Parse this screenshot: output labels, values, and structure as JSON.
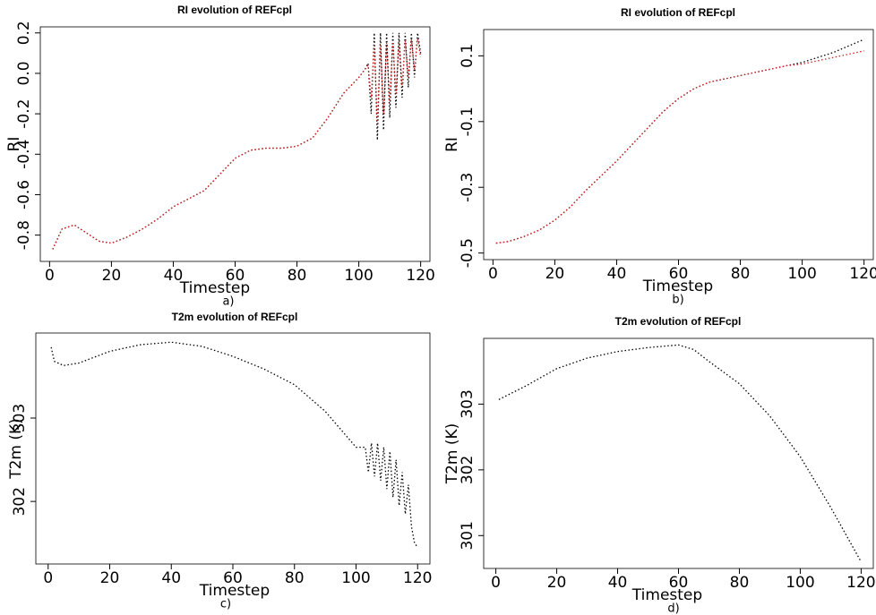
{
  "chart_data": [
    {
      "type": "line",
      "title": "RI evolution of REFcpl",
      "x_label": "Timestep",
      "y_label": "RI",
      "panel_label": "a)",
      "x": [
        1,
        4,
        8,
        12,
        16,
        20,
        25,
        30,
        35,
        40,
        45,
        50,
        55,
        60,
        65,
        70,
        75,
        80,
        85,
        90,
        95,
        100,
        102,
        103,
        104,
        105,
        106,
        107,
        108,
        109,
        110,
        111,
        112,
        113,
        114,
        115,
        116,
        117,
        118,
        119,
        120
      ],
      "series": [
        {
          "color": "#000000",
          "values": [
            -0.87,
            -0.77,
            -0.75,
            -0.79,
            -0.83,
            -0.84,
            -0.81,
            -0.77,
            -0.72,
            -0.66,
            -0.62,
            -0.58,
            -0.5,
            -0.42,
            -0.38,
            -0.37,
            -0.37,
            -0.36,
            -0.32,
            -0.22,
            -0.1,
            -0.02,
            0.02,
            0.05,
            -0.2,
            0.2,
            -0.33,
            0.2,
            -0.28,
            0.2,
            -0.22,
            0.2,
            -0.17,
            0.2,
            -0.12,
            0.2,
            -0.07,
            0.2,
            -0.02,
            0.2,
            0.1
          ]
        },
        {
          "color": "#d62020",
          "values": [
            -0.87,
            -0.77,
            -0.75,
            -0.79,
            -0.83,
            -0.84,
            -0.81,
            -0.77,
            -0.72,
            -0.66,
            -0.62,
            -0.58,
            -0.5,
            -0.42,
            -0.38,
            -0.37,
            -0.37,
            -0.36,
            -0.32,
            -0.22,
            -0.1,
            -0.02,
            0.02,
            0.04,
            -0.12,
            0.14,
            -0.25,
            0.14,
            -0.2,
            0.15,
            -0.15,
            0.15,
            -0.1,
            0.16,
            -0.06,
            0.16,
            -0.02,
            0.17,
            0.02,
            0.17,
            0.08
          ]
        }
      ],
      "xlim": [
        -3,
        123
      ],
      "ylim": [
        -0.93,
        0.23
      ],
      "xticks": [
        0,
        20,
        40,
        60,
        80,
        100,
        120
      ],
      "yticks": [
        -0.8,
        -0.6,
        -0.4,
        -0.2,
        {
          "value": 0,
          "label": "0.0"
        },
        0.2
      ]
    },
    {
      "type": "line",
      "title": "RI evolution of REFcpl",
      "x_label": "Timestep",
      "y_label": "RI",
      "panel_label": "b)",
      "x": [
        1,
        5,
        10,
        15,
        20,
        25,
        30,
        35,
        40,
        45,
        50,
        55,
        60,
        65,
        70,
        75,
        80,
        85,
        90,
        95,
        100,
        105,
        110,
        115,
        120
      ],
      "series": [
        {
          "color": "#000000",
          "values": [
            -0.47,
            -0.465,
            -0.45,
            -0.43,
            -0.4,
            -0.36,
            -0.31,
            -0.265,
            -0.22,
            -0.17,
            -0.12,
            -0.07,
            -0.03,
            0.0,
            0.02,
            0.03,
            0.04,
            0.05,
            0.06,
            0.07,
            0.08,
            0.095,
            0.11,
            0.13,
            0.15
          ]
        },
        {
          "color": "#d62020",
          "values": [
            -0.47,
            -0.465,
            -0.45,
            -0.43,
            -0.4,
            -0.36,
            -0.31,
            -0.265,
            -0.22,
            -0.17,
            -0.12,
            -0.07,
            -0.03,
            0.0,
            0.02,
            0.03,
            0.04,
            0.05,
            0.06,
            0.07,
            0.075,
            0.085,
            0.095,
            0.105,
            0.115
          ]
        }
      ],
      "xlim": [
        -3,
        123
      ],
      "ylim": [
        -0.52,
        0.18
      ],
      "xticks": [
        0,
        20,
        40,
        60,
        80,
        100,
        120
      ],
      "yticks": [
        -0.5,
        -0.3,
        -0.1,
        0.1
      ]
    },
    {
      "type": "line",
      "title": "T2m evolution of REFcpl",
      "x_label": "Timestep",
      "y_label": "T2m (K)",
      "panel_label": "c)",
      "x": [
        1,
        2,
        5,
        10,
        20,
        30,
        40,
        50,
        60,
        70,
        80,
        90,
        100,
        103,
        104,
        105,
        106,
        107,
        108,
        109,
        110,
        111,
        112,
        113,
        114,
        115,
        116,
        117,
        118,
        119,
        120
      ],
      "series": [
        {
          "color": "#000000",
          "values": [
            303.85,
            303.68,
            303.63,
            303.66,
            303.8,
            303.88,
            303.91,
            303.86,
            303.74,
            303.59,
            303.4,
            303.08,
            302.65,
            302.65,
            302.35,
            302.7,
            302.3,
            302.7,
            302.25,
            302.65,
            302.15,
            302.6,
            302.05,
            302.5,
            301.95,
            302.35,
            301.85,
            302.2,
            301.7,
            301.5,
            301.45
          ]
        }
      ],
      "xlim": [
        -4,
        124
      ],
      "ylim": [
        301.25,
        304.02
      ],
      "xticks": [
        0,
        20,
        40,
        60,
        80,
        100,
        120
      ],
      "yticks": [
        302,
        303
      ]
    },
    {
      "type": "line",
      "title": "T2m evolution of REFcpl",
      "x_label": "Timestep",
      "y_label": "T2m (K)",
      "panel_label": "d)",
      "x": [
        1,
        10,
        20,
        30,
        40,
        50,
        60,
        65,
        70,
        80,
        90,
        100,
        110,
        120
      ],
      "series": [
        {
          "color": "#000000",
          "values": [
            303.07,
            303.28,
            303.54,
            303.7,
            303.8,
            303.86,
            303.9,
            303.83,
            303.65,
            303.31,
            302.82,
            302.2,
            301.43,
            300.6
          ]
        }
      ],
      "xlim": [
        -4,
        124
      ],
      "ylim": [
        300.5,
        304.0
      ],
      "xticks": [
        0,
        20,
        40,
        60,
        80,
        100,
        120
      ],
      "yticks": [
        301,
        302,
        303
      ]
    }
  ]
}
